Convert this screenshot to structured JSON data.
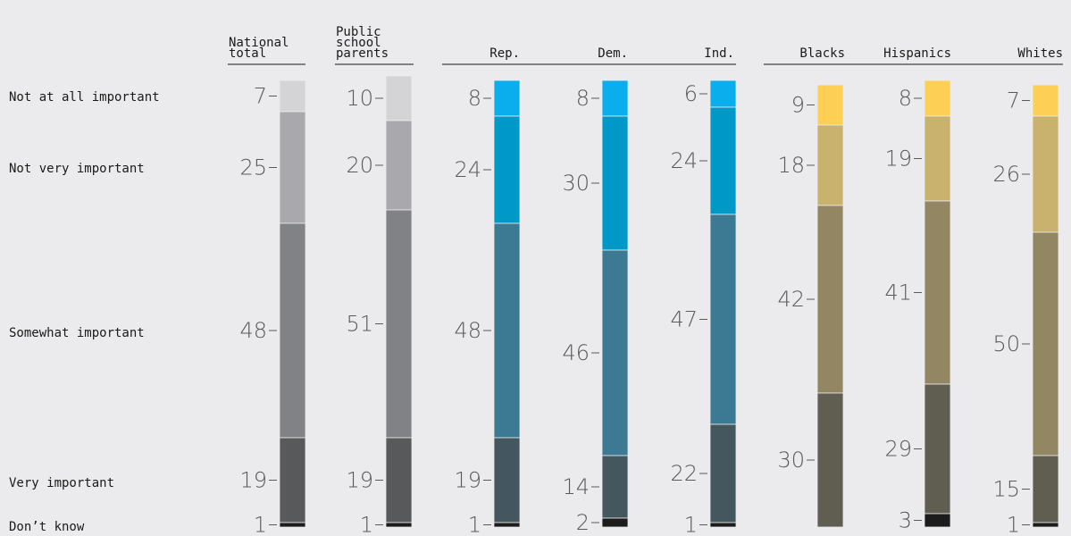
{
  "chart_data": {
    "type": "bar",
    "subtype": "stacked-100",
    "row_labels": [
      "Not at all important",
      "Not very important",
      "Somewhat important",
      "Very important",
      "Don’t know"
    ],
    "groups": [
      {
        "name": "national",
        "columns": [
          {
            "label": [
              "National",
              "total"
            ],
            "values": [
              7,
              25,
              48,
              19,
              1
            ],
            "colors": [
              "#d4d4d6",
              "#a9a9ad",
              "#818286",
              "#58595b",
              "#1c1c1c"
            ]
          }
        ]
      },
      {
        "name": "parents",
        "columns": [
          {
            "label": [
              "Public",
              "school",
              "parents"
            ],
            "values": [
              10,
              20,
              51,
              19,
              1
            ],
            "colors": [
              "#d4d4d6",
              "#a9a9ad",
              "#818286",
              "#58595b",
              "#1c1c1c"
            ]
          }
        ]
      },
      {
        "name": "party",
        "columns": [
          {
            "label": [
              "Rep."
            ],
            "values": [
              8,
              24,
              48,
              19,
              1
            ],
            "colors": [
              "#0aaeec",
              "#0099c7",
              "#3c7a93",
              "#44575f",
              "#1c1c1c"
            ]
          },
          {
            "label": [
              "Dem."
            ],
            "values": [
              8,
              30,
              46,
              14,
              2
            ],
            "colors": [
              "#0aaeec",
              "#0099c7",
              "#3c7a93",
              "#44575f",
              "#1c1c1c"
            ]
          },
          {
            "label": [
              "Ind."
            ],
            "values": [
              6,
              24,
              47,
              22,
              1
            ],
            "colors": [
              "#0aaeec",
              "#0099c7",
              "#3c7a93",
              "#44575f",
              "#1c1c1c"
            ]
          }
        ]
      },
      {
        "name": "race",
        "columns": [
          {
            "label": [
              "Blacks"
            ],
            "values": [
              9,
              18,
              42,
              30,
              0
            ],
            "colors": [
              "#fdd055",
              "#c9b26e",
              "#928762",
              "#605d51",
              "#1c1c1c"
            ]
          },
          {
            "label": [
              "Hispanics"
            ],
            "values": [
              8,
              19,
              41,
              29,
              3
            ],
            "colors": [
              "#fdd055",
              "#c9b26e",
              "#928762",
              "#605d51",
              "#1c1c1c"
            ]
          },
          {
            "label": [
              "Whites"
            ],
            "values": [
              7,
              26,
              50,
              15,
              1
            ],
            "colors": [
              "#fdd055",
              "#c9b26e",
              "#928762",
              "#605d51",
              "#1c1c1c"
            ]
          }
        ]
      }
    ]
  }
}
